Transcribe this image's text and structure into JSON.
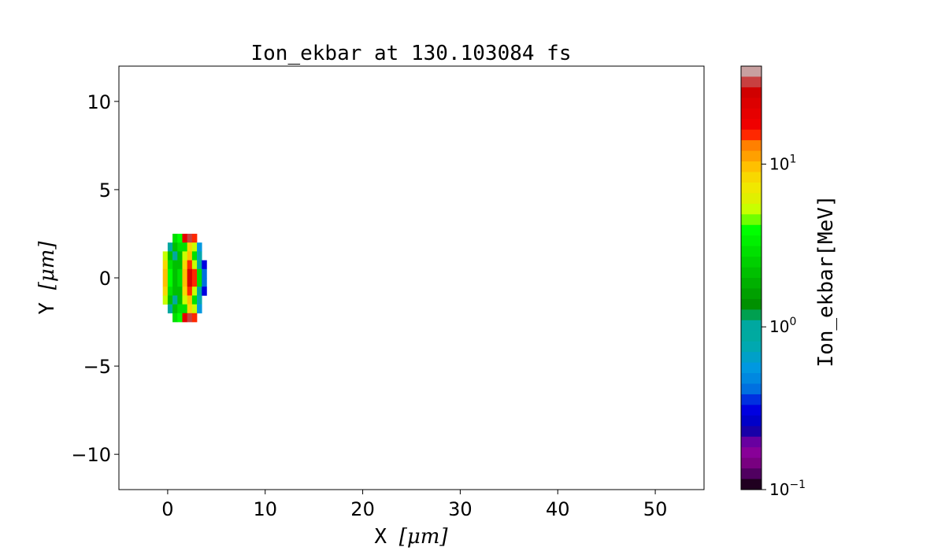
{
  "chart_data": {
    "type": "heatmap",
    "title": "Ion_ekbar at 130.103084 fs",
    "xlabel_text": "X ",
    "xlabel_unit": "[μm]",
    "ylabel_text": "Y ",
    "ylabel_unit": "[μm]",
    "xlim": [
      -5,
      55
    ],
    "ylim": [
      -12,
      12
    ],
    "xticks": [
      0,
      10,
      20,
      30,
      40,
      50
    ],
    "xtick_labels": [
      "0",
      "10",
      "20",
      "30",
      "40",
      "50"
    ],
    "yticks": [
      10,
      5,
      0,
      -5,
      -10
    ],
    "ytick_labels": [
      "10",
      "5",
      "0",
      "−5",
      "−10"
    ],
    "grid": false,
    "colorbar": {
      "label": "Ion_ekbar[MeV]",
      "scale": "log",
      "range": [
        0.1,
        40
      ],
      "ticks": [
        0.1,
        1,
        10
      ],
      "tick_labels": [
        {
          "base": "10",
          "exp": "−1"
        },
        {
          "base": "10",
          "exp": "0"
        },
        {
          "base": "10",
          "exp": "1"
        }
      ],
      "colormap": "nipy_spectral",
      "bands_top_to_bottom": [
        "#c8a0a0",
        "#c84040",
        "#d00000",
        "#dc0000",
        "#e60000",
        "#f00000",
        "#ff2800",
        "#ff8000",
        "#ffa000",
        "#ffc000",
        "#f8d800",
        "#f0e800",
        "#e0f000",
        "#c8ff00",
        "#70ff00",
        "#00ff00",
        "#00f000",
        "#00e000",
        "#00d000",
        "#00c000",
        "#00b000",
        "#00a000",
        "#009000",
        "#00a050",
        "#00a8a0",
        "#00aaa0",
        "#00a8b0",
        "#00a0c8",
        "#0098e0",
        "#0088e0",
        "#0070e0",
        "#0030e0",
        "#0000e0",
        "#0000c8",
        "#1800a8",
        "#6800a0",
        "#880098",
        "#780080",
        "#500060",
        "#200020"
      ]
    },
    "x_centers": [
      -0.25,
      0.25,
      0.75,
      1.25,
      1.75,
      2.25,
      2.75,
      3.25,
      3.75
    ],
    "y_centers": [
      2.25,
      1.75,
      1.25,
      0.75,
      0.25,
      -0.25,
      -0.75,
      -1.25,
      -1.75,
      -2.25
    ],
    "cell_size": 0.5,
    "values": [
      [
        null,
        null,
        3,
        4,
        20,
        30,
        15,
        null,
        null
      ],
      [
        null,
        1,
        2,
        3,
        3,
        8,
        5,
        0.6,
        null
      ],
      [
        5,
        2,
        1,
        2,
        5,
        10,
        3,
        0.8,
        null
      ],
      [
        8,
        3,
        2,
        2,
        8,
        15,
        5,
        1,
        0.3
      ],
      [
        10,
        4,
        2,
        3,
        10,
        25,
        15,
        3,
        0.4
      ],
      [
        10,
        4,
        2,
        3,
        10,
        25,
        15,
        3,
        0.4
      ],
      [
        8,
        3,
        2,
        2,
        8,
        15,
        5,
        1,
        0.3
      ],
      [
        5,
        2,
        1,
        2,
        5,
        10,
        3,
        0.8,
        null
      ],
      [
        null,
        1,
        2,
        3,
        3,
        8,
        5,
        0.6,
        null
      ],
      [
        null,
        null,
        3,
        4,
        20,
        30,
        15,
        null,
        null
      ]
    ]
  }
}
